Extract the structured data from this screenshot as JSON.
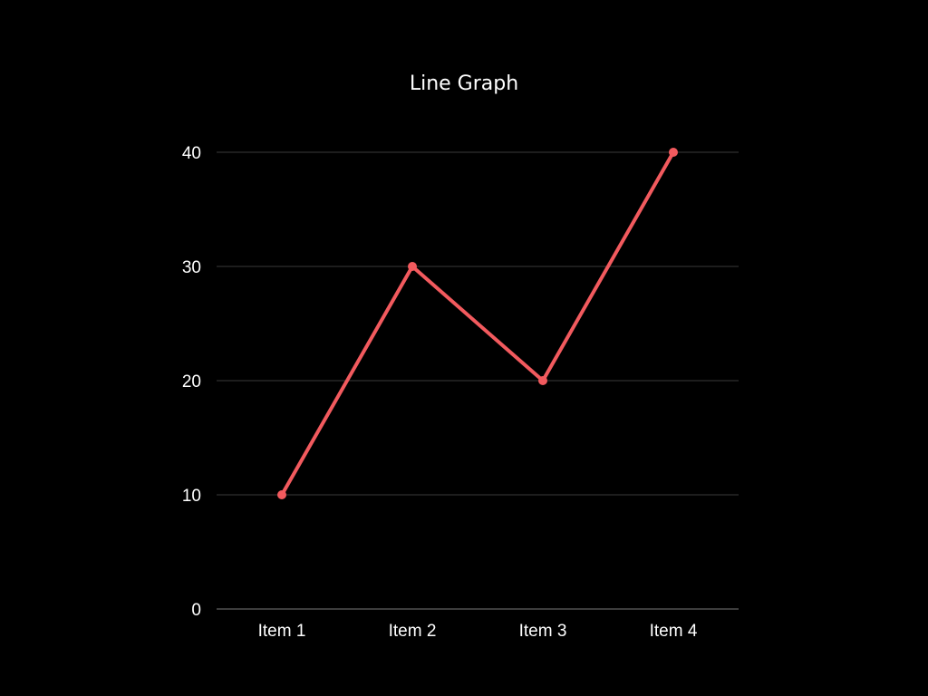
{
  "chart_data": {
    "type": "line",
    "title": "Line Graph",
    "xlabel": "",
    "ylabel": "",
    "categories": [
      "Item 1",
      "Item 2",
      "Item 3",
      "Item 4"
    ],
    "series": [
      {
        "values": [
          10,
          30,
          20,
          40
        ]
      }
    ],
    "ylim": [
      0,
      40
    ],
    "yticks": [
      "0",
      "10",
      "20",
      "30",
      "40"
    ],
    "grid": true,
    "legend": "none"
  },
  "colors": {
    "background": "#000000",
    "text": "#ffffff",
    "gridline": "#3a3a3a",
    "axis": "#7a7a7a",
    "series_line": "#f25a5e"
  }
}
